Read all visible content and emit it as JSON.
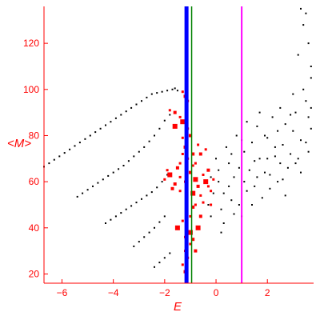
{
  "chart_data": {
    "type": "scatter",
    "title": "",
    "xlabel": "E",
    "ylabel": "<M>",
    "xlim": [
      -6.7,
      3.8
    ],
    "ylim": [
      16,
      136
    ],
    "xticks": [
      -6,
      -4,
      -2,
      0,
      2
    ],
    "yticks": [
      20,
      40,
      60,
      80,
      100,
      120
    ],
    "grid": false,
    "legend": "none",
    "colors": {
      "axes": "#ff0000",
      "black_points": "#000000",
      "red_points": "#ff0000",
      "blue_line": "#0000ff",
      "green_line": "#008000",
      "magenta_line": "#ff00ff"
    },
    "vertical_lines": [
      {
        "x": -1.15,
        "color": "#0000ff",
        "width": "thick"
      },
      {
        "x": -0.95,
        "color": "#008000",
        "width": "thin"
      },
      {
        "x": 1.0,
        "color": "#ff00ff",
        "width": "medium"
      }
    ],
    "series": [
      {
        "color": "#000000",
        "style": "dotted-branch",
        "points": [
          [
            -6.7,
            66.5
          ],
          [
            -6.5,
            68
          ],
          [
            -6.3,
            69.5
          ],
          [
            -6.1,
            71
          ],
          [
            -5.9,
            72.5
          ],
          [
            -5.7,
            74
          ],
          [
            -5.5,
            75.5
          ],
          [
            -5.3,
            77
          ],
          [
            -5.1,
            78.5
          ],
          [
            -4.9,
            80
          ],
          [
            -4.7,
            81.5
          ],
          [
            -4.5,
            83
          ],
          [
            -4.3,
            84.5
          ],
          [
            -4.1,
            86
          ],
          [
            -3.9,
            87.5
          ],
          [
            -3.7,
            89
          ],
          [
            -3.5,
            90.5
          ],
          [
            -3.3,
            92
          ],
          [
            -3.1,
            93.5
          ],
          [
            -2.9,
            95
          ],
          [
            -2.7,
            96.5
          ],
          [
            -2.5,
            98
          ],
          [
            -2.3,
            98.5
          ],
          [
            -2.1,
            99
          ],
          [
            -1.9,
            99.5
          ],
          [
            -1.7,
            100
          ],
          [
            -1.6,
            100.5
          ],
          [
            -1.5,
            99.5
          ]
        ]
      },
      {
        "color": "#000000",
        "style": "dotted-branch",
        "points": [
          [
            -5.4,
            53.5
          ],
          [
            -5.2,
            55
          ],
          [
            -5.0,
            56.5
          ],
          [
            -4.8,
            58
          ],
          [
            -4.6,
            59.5
          ],
          [
            -4.4,
            61
          ],
          [
            -4.2,
            62.5
          ],
          [
            -4.0,
            64
          ],
          [
            -3.8,
            65.5
          ],
          [
            -3.6,
            67
          ],
          [
            -3.4,
            69
          ],
          [
            -3.2,
            71
          ],
          [
            -3.0,
            73
          ],
          [
            -2.8,
            75
          ],
          [
            -2.6,
            77.5
          ],
          [
            -2.4,
            80
          ],
          [
            -2.2,
            83
          ],
          [
            -2.0,
            86.5
          ],
          [
            -1.8,
            89
          ]
        ]
      },
      {
        "color": "#000000",
        "style": "dotted-branch",
        "points": [
          [
            -4.3,
            42
          ],
          [
            -4.1,
            43.5
          ],
          [
            -3.9,
            45
          ],
          [
            -3.7,
            46.5
          ],
          [
            -3.5,
            48
          ],
          [
            -3.3,
            49.5
          ],
          [
            -3.1,
            51
          ],
          [
            -2.9,
            52.5
          ],
          [
            -2.7,
            54
          ],
          [
            -2.5,
            55.5
          ],
          [
            -2.3,
            57.5
          ],
          [
            -2.1,
            60
          ],
          [
            -1.9,
            63
          ]
        ]
      },
      {
        "color": "#000000",
        "style": "dotted-branch",
        "points": [
          [
            -3.2,
            32
          ],
          [
            -3.0,
            34
          ],
          [
            -2.8,
            36
          ],
          [
            -2.6,
            38
          ],
          [
            -2.4,
            40
          ],
          [
            -2.2,
            42.5
          ],
          [
            -2.0,
            45
          ]
        ]
      },
      {
        "color": "#000000",
        "style": "dotted-branch",
        "points": [
          [
            -2.4,
            23
          ],
          [
            -2.2,
            25
          ],
          [
            -2.0,
            27
          ],
          [
            -1.8,
            29
          ]
        ]
      },
      {
        "color": "#000000",
        "style": "cloud",
        "points": [
          [
            0.1,
            60
          ],
          [
            0.3,
            55
          ],
          [
            0.5,
            68
          ],
          [
            0.7,
            62
          ],
          [
            0.9,
            50
          ],
          [
            1.1,
            73
          ],
          [
            1.3,
            65
          ],
          [
            1.5,
            58
          ],
          [
            1.7,
            70
          ],
          [
            1.9,
            80
          ],
          [
            2.1,
            63
          ],
          [
            2.3,
            75
          ],
          [
            2.5,
            68
          ],
          [
            2.7,
            85
          ],
          [
            2.9,
            72
          ],
          [
            3.1,
            90
          ],
          [
            3.3,
            78
          ],
          [
            3.5,
            95
          ],
          [
            3.7,
            83
          ],
          [
            0.2,
            48
          ],
          [
            0.4,
            75
          ],
          [
            0.6,
            52
          ],
          [
            0.8,
            80
          ],
          [
            1.0,
            45
          ],
          [
            1.2,
            56
          ],
          [
            1.4,
            77
          ],
          [
            1.6,
            62
          ],
          [
            1.8,
            53
          ],
          [
            2.0,
            70
          ],
          [
            2.2,
            88
          ],
          [
            2.4,
            60
          ],
          [
            2.6,
            76
          ],
          [
            2.8,
            66
          ],
          [
            3.0,
            82
          ],
          [
            3.2,
            70
          ],
          [
            3.4,
            100
          ],
          [
            3.6,
            88
          ],
          [
            3.7,
            110
          ],
          [
            3.6,
            120
          ],
          [
            3.4,
            128
          ],
          [
            3.3,
            135
          ],
          [
            3.5,
            133
          ],
          [
            3.7,
            105
          ],
          [
            3.2,
            115
          ],
          [
            0.5,
            58
          ],
          [
            0.9,
            66
          ],
          [
            1.5,
            69
          ],
          [
            2.1,
            57
          ],
          [
            2.6,
            61
          ],
          [
            1.2,
            86
          ],
          [
            1.7,
            90
          ],
          [
            2.5,
            92
          ],
          [
            3.0,
            98
          ],
          [
            0.3,
            42
          ],
          [
            0.7,
            46
          ],
          [
            1.1,
            60
          ],
          [
            1.9,
            64
          ],
          [
            2.3,
            71
          ],
          [
            2.7,
            54
          ],
          [
            3.3,
            64
          ],
          [
            3.6,
            73
          ],
          [
            1.4,
            50
          ],
          [
            2.0,
            79
          ],
          [
            2.9,
            89
          ],
          [
            3.5,
            77
          ],
          [
            0.6,
            72
          ],
          [
            1.0,
            78
          ],
          [
            1.6,
            84
          ],
          [
            2.4,
            82
          ],
          [
            3.1,
            68
          ],
          [
            3.7,
            92
          ],
          [
            -0.2,
            62
          ],
          [
            -0.1,
            55
          ],
          [
            -0.3,
            50
          ],
          [
            0.0,
            70
          ],
          [
            0.1,
            65
          ],
          [
            -0.2,
            45
          ],
          [
            0.2,
            38
          ]
        ]
      },
      {
        "color": "#ff0000",
        "style": "scatter",
        "points": [
          [
            -1.6,
            84
          ],
          [
            -1.4,
            88
          ],
          [
            -1.3,
            79
          ],
          [
            -1.2,
            75
          ],
          [
            -1.3,
            72
          ],
          [
            -1.4,
            68
          ],
          [
            -1.5,
            66
          ],
          [
            -1.8,
            63
          ],
          [
            -2.0,
            61
          ],
          [
            -1.7,
            57
          ],
          [
            -1.4,
            56
          ],
          [
            -1.2,
            60
          ],
          [
            -1.0,
            64
          ],
          [
            -0.9,
            67
          ],
          [
            -0.8,
            61
          ],
          [
            -0.7,
            58
          ],
          [
            -0.6,
            54
          ],
          [
            -0.5,
            51
          ],
          [
            -0.9,
            49
          ],
          [
            -1.0,
            45
          ],
          [
            -1.3,
            43
          ],
          [
            -1.5,
            40
          ],
          [
            -1.2,
            36
          ],
          [
            -1.0,
            33
          ],
          [
            -0.8,
            30
          ],
          [
            -1.1,
            27
          ],
          [
            -1.3,
            24
          ],
          [
            -1.2,
            21
          ],
          [
            -0.9,
            55
          ],
          [
            -0.8,
            68
          ],
          [
            -0.6,
            72
          ],
          [
            -0.4,
            74
          ],
          [
            -0.7,
            76
          ],
          [
            -1.0,
            80
          ],
          [
            -1.1,
            83
          ],
          [
            -1.3,
            86
          ],
          [
            -1.6,
            90
          ],
          [
            -1.8,
            91
          ],
          [
            -1.1,
            95
          ],
          [
            -1.2,
            97
          ],
          [
            -1.3,
            99
          ],
          [
            -0.5,
            63
          ],
          [
            -0.4,
            60
          ],
          [
            -0.3,
            58
          ],
          [
            -0.2,
            56
          ],
          [
            -0.3,
            65
          ],
          [
            -0.2,
            50
          ],
          [
            -0.1,
            61
          ],
          [
            -0.6,
            45
          ],
          [
            -0.7,
            40
          ],
          [
            -1.4,
            62
          ],
          [
            -1.6,
            59
          ],
          [
            -1.9,
            65
          ],
          [
            -1.1,
            70
          ],
          [
            -0.9,
            72
          ],
          [
            -0.8,
            50
          ],
          [
            -1.0,
            38
          ],
          [
            -0.9,
            35
          ],
          [
            -1.2,
            30
          ]
        ]
      }
    ]
  }
}
